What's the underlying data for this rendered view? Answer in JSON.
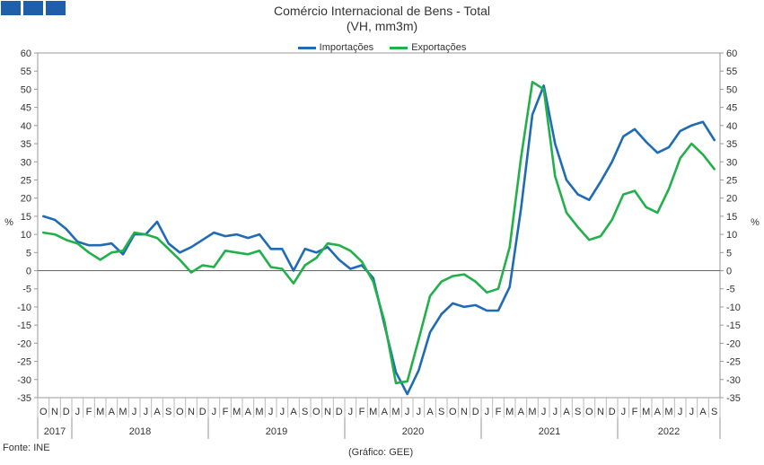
{
  "header": {
    "title": "Comércio Internacional de Bens - Total",
    "subtitle": "(VH, mm3m)"
  },
  "footer": {
    "source": "Fonte: INE",
    "credit": "(Gráfico: GEE)"
  },
  "colors": {
    "importacoes": "#1f6bb5",
    "exportacoes": "#22b04b",
    "logo": "#1f5ea8"
  },
  "chart_data": {
    "type": "line",
    "title": "Comércio Internacional de Bens - Total",
    "subtitle": "(VH, mm3m)",
    "ylabel": "%",
    "ylabel_right": "%",
    "ylim": [
      -35,
      60
    ],
    "yticks": [
      60,
      55,
      50,
      45,
      40,
      35,
      30,
      25,
      20,
      15,
      10,
      5,
      0,
      -5,
      -10,
      -15,
      -20,
      -25,
      -30,
      -35
    ],
    "legend_position": "top-center",
    "grid": false,
    "x": [
      "O",
      "N",
      "D",
      "J",
      "F",
      "M",
      "A",
      "M",
      "J",
      "J",
      "A",
      "S",
      "O",
      "N",
      "D",
      "J",
      "F",
      "M",
      "A",
      "M",
      "J",
      "J",
      "A",
      "S",
      "O",
      "N",
      "D",
      "J",
      "F",
      "M",
      "A",
      "M",
      "J",
      "J",
      "A",
      "S",
      "O",
      "N",
      "D",
      "J",
      "F",
      "M",
      "A",
      "M",
      "J",
      "J",
      "A",
      "S",
      "O",
      "N",
      "D",
      "J",
      "F",
      "M",
      "A",
      "M",
      "J",
      "J",
      "A",
      "S"
    ],
    "years": [
      {
        "label": "2017",
        "start": 0,
        "count": 3
      },
      {
        "label": "2018",
        "start": 3,
        "count": 12
      },
      {
        "label": "2019",
        "start": 15,
        "count": 12
      },
      {
        "label": "2020",
        "start": 27,
        "count": 12
      },
      {
        "label": "2021",
        "start": 39,
        "count": 12
      },
      {
        "label": "2022",
        "start": 51,
        "count": 9
      }
    ],
    "series": [
      {
        "name": "Importações",
        "color": "#1f6bb5",
        "values": [
          15,
          14,
          11.5,
          8,
          7,
          7,
          7.5,
          4.5,
          10,
          10,
          13.5,
          7.5,
          5,
          6.5,
          8.5,
          10.5,
          9.5,
          10,
          9,
          10,
          6,
          6,
          0,
          6,
          5,
          6.5,
          3,
          0.5,
          1.5,
          -2,
          -15,
          -28,
          -34,
          -27.5,
          -17,
          -12,
          -9,
          -10,
          -9.5,
          -11,
          -11,
          -4.5,
          17,
          43,
          51,
          35,
          25,
          21,
          19.5,
          24.5,
          30,
          37,
          39,
          35.5,
          32.5,
          34,
          38.5,
          40,
          41,
          36
        ]
      },
      {
        "name": "Exportações",
        "color": "#22b04b",
        "values": [
          10.5,
          10,
          8.5,
          7.5,
          5,
          3,
          5,
          5.5,
          10.5,
          10,
          9,
          6,
          3,
          -0.5,
          1.5,
          1,
          5.5,
          5,
          4.5,
          5.5,
          1,
          0.5,
          -3.5,
          1.5,
          3.5,
          7.5,
          7,
          5.5,
          2.5,
          -3,
          -14,
          -31,
          -30.5,
          -19,
          -7,
          -3,
          -1.5,
          -1,
          -3,
          -6,
          -5,
          6.5,
          31,
          52,
          50,
          26,
          16,
          12,
          8.5,
          9.5,
          14,
          21,
          22,
          17.5,
          16,
          22.5,
          31,
          35,
          32,
          28
        ]
      }
    ]
  }
}
